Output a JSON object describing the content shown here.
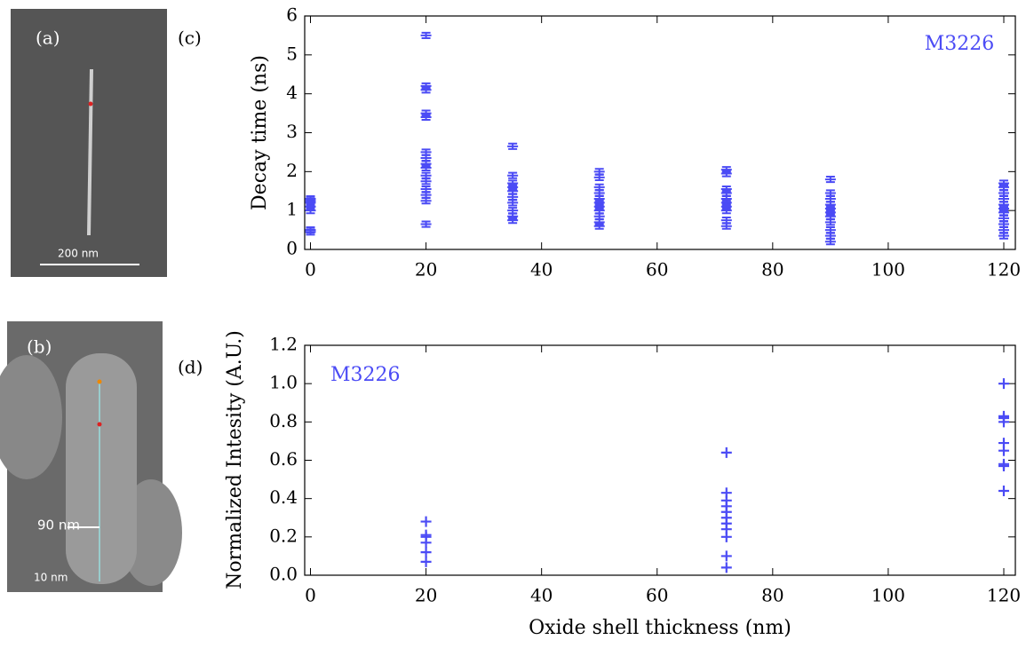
{
  "panels": {
    "a": {
      "label": "(a)",
      "scale_bar": "200 nm"
    },
    "b": {
      "label": "(b)",
      "width_label": "90 nm",
      "tip_label": "10 nm"
    }
  },
  "chart_data": [
    {
      "type": "errorbar",
      "panel_label": "(c)",
      "ylabel": "Decay time (ns)",
      "annotation": "M3226",
      "xlim": [
        -1,
        122
      ],
      "xticks": [
        0,
        20,
        40,
        60,
        80,
        100,
        120
      ],
      "ylim": [
        0,
        6
      ],
      "yticks": [
        0,
        1,
        2,
        3,
        4,
        5,
        6
      ],
      "series": [
        {
          "color": "#4b4bf5",
          "yerr": 0.07,
          "x": [
            0,
            0,
            0,
            0,
            0,
            0,
            0,
            20,
            20,
            20,
            20,
            20,
            20,
            20,
            20,
            20,
            20,
            20,
            20,
            20,
            20,
            20,
            35,
            35,
            35,
            35,
            35,
            35,
            35,
            35,
            35,
            35,
            50,
            50,
            50,
            50,
            50,
            50,
            50,
            50,
            50,
            50,
            50,
            72,
            72,
            72,
            72,
            72,
            72,
            72,
            72,
            72,
            72,
            90,
            90,
            90,
            90,
            90,
            90,
            90,
            90,
            90,
            90,
            90,
            120,
            120,
            120,
            120,
            120,
            120,
            120,
            120,
            120,
            120,
            120
          ],
          "values": [
            0.45,
            0.5,
            1.0,
            1.1,
            1.2,
            1.25,
            1.3,
            0.65,
            1.25,
            1.4,
            1.55,
            1.75,
            1.9,
            2.1,
            2.2,
            2.35,
            2.5,
            3.4,
            3.5,
            4.1,
            4.2,
            5.5,
            0.75,
            0.85,
            1.0,
            1.2,
            1.35,
            1.5,
            1.6,
            1.7,
            1.9,
            2.65,
            0.6,
            0.7,
            0.85,
            1.0,
            1.1,
            1.2,
            1.3,
            1.45,
            1.6,
            1.85,
            2.0,
            0.6,
            0.75,
            1.0,
            1.1,
            1.2,
            1.3,
            1.45,
            1.55,
            1.95,
            2.05,
            0.2,
            0.35,
            0.5,
            0.7,
            0.85,
            0.95,
            1.05,
            1.15,
            1.3,
            1.45,
            1.8,
            0.35,
            0.5,
            0.65,
            0.8,
            0.95,
            1.05,
            1.15,
            1.3,
            1.45,
            1.6,
            1.7
          ]
        }
      ]
    },
    {
      "type": "scatter",
      "panel_label": "(d)",
      "ylabel": "Normalized Intesity (A.U.)",
      "xlabel": "Oxide shell thickness (nm)",
      "annotation": "M3226",
      "xlim": [
        -1,
        122
      ],
      "xticks": [
        0,
        20,
        40,
        60,
        80,
        100,
        120
      ],
      "ylim": [
        0,
        1.2
      ],
      "yticks": [
        {
          "value": 0,
          "label": "0.0"
        },
        0.2,
        0.4,
        0.6,
        0.8,
        {
          "value": 1,
          "label": "1.0"
        },
        1.2
      ],
      "series": [
        {
          "color": "#4b4bf5",
          "x": [
            20,
            20,
            20,
            20,
            20,
            20,
            72,
            72,
            72,
            72,
            72,
            72,
            72,
            72,
            72,
            72,
            72,
            120,
            120,
            120,
            120,
            120,
            120,
            120,
            120,
            120
          ],
          "values": [
            0.07,
            0.12,
            0.17,
            0.2,
            0.21,
            0.28,
            0.04,
            0.1,
            0.2,
            0.24,
            0.27,
            0.3,
            0.33,
            0.36,
            0.39,
            0.43,
            0.64,
            0.44,
            0.57,
            0.58,
            0.65,
            0.69,
            0.8,
            0.82,
            0.83,
            1.0
          ]
        }
      ]
    }
  ]
}
